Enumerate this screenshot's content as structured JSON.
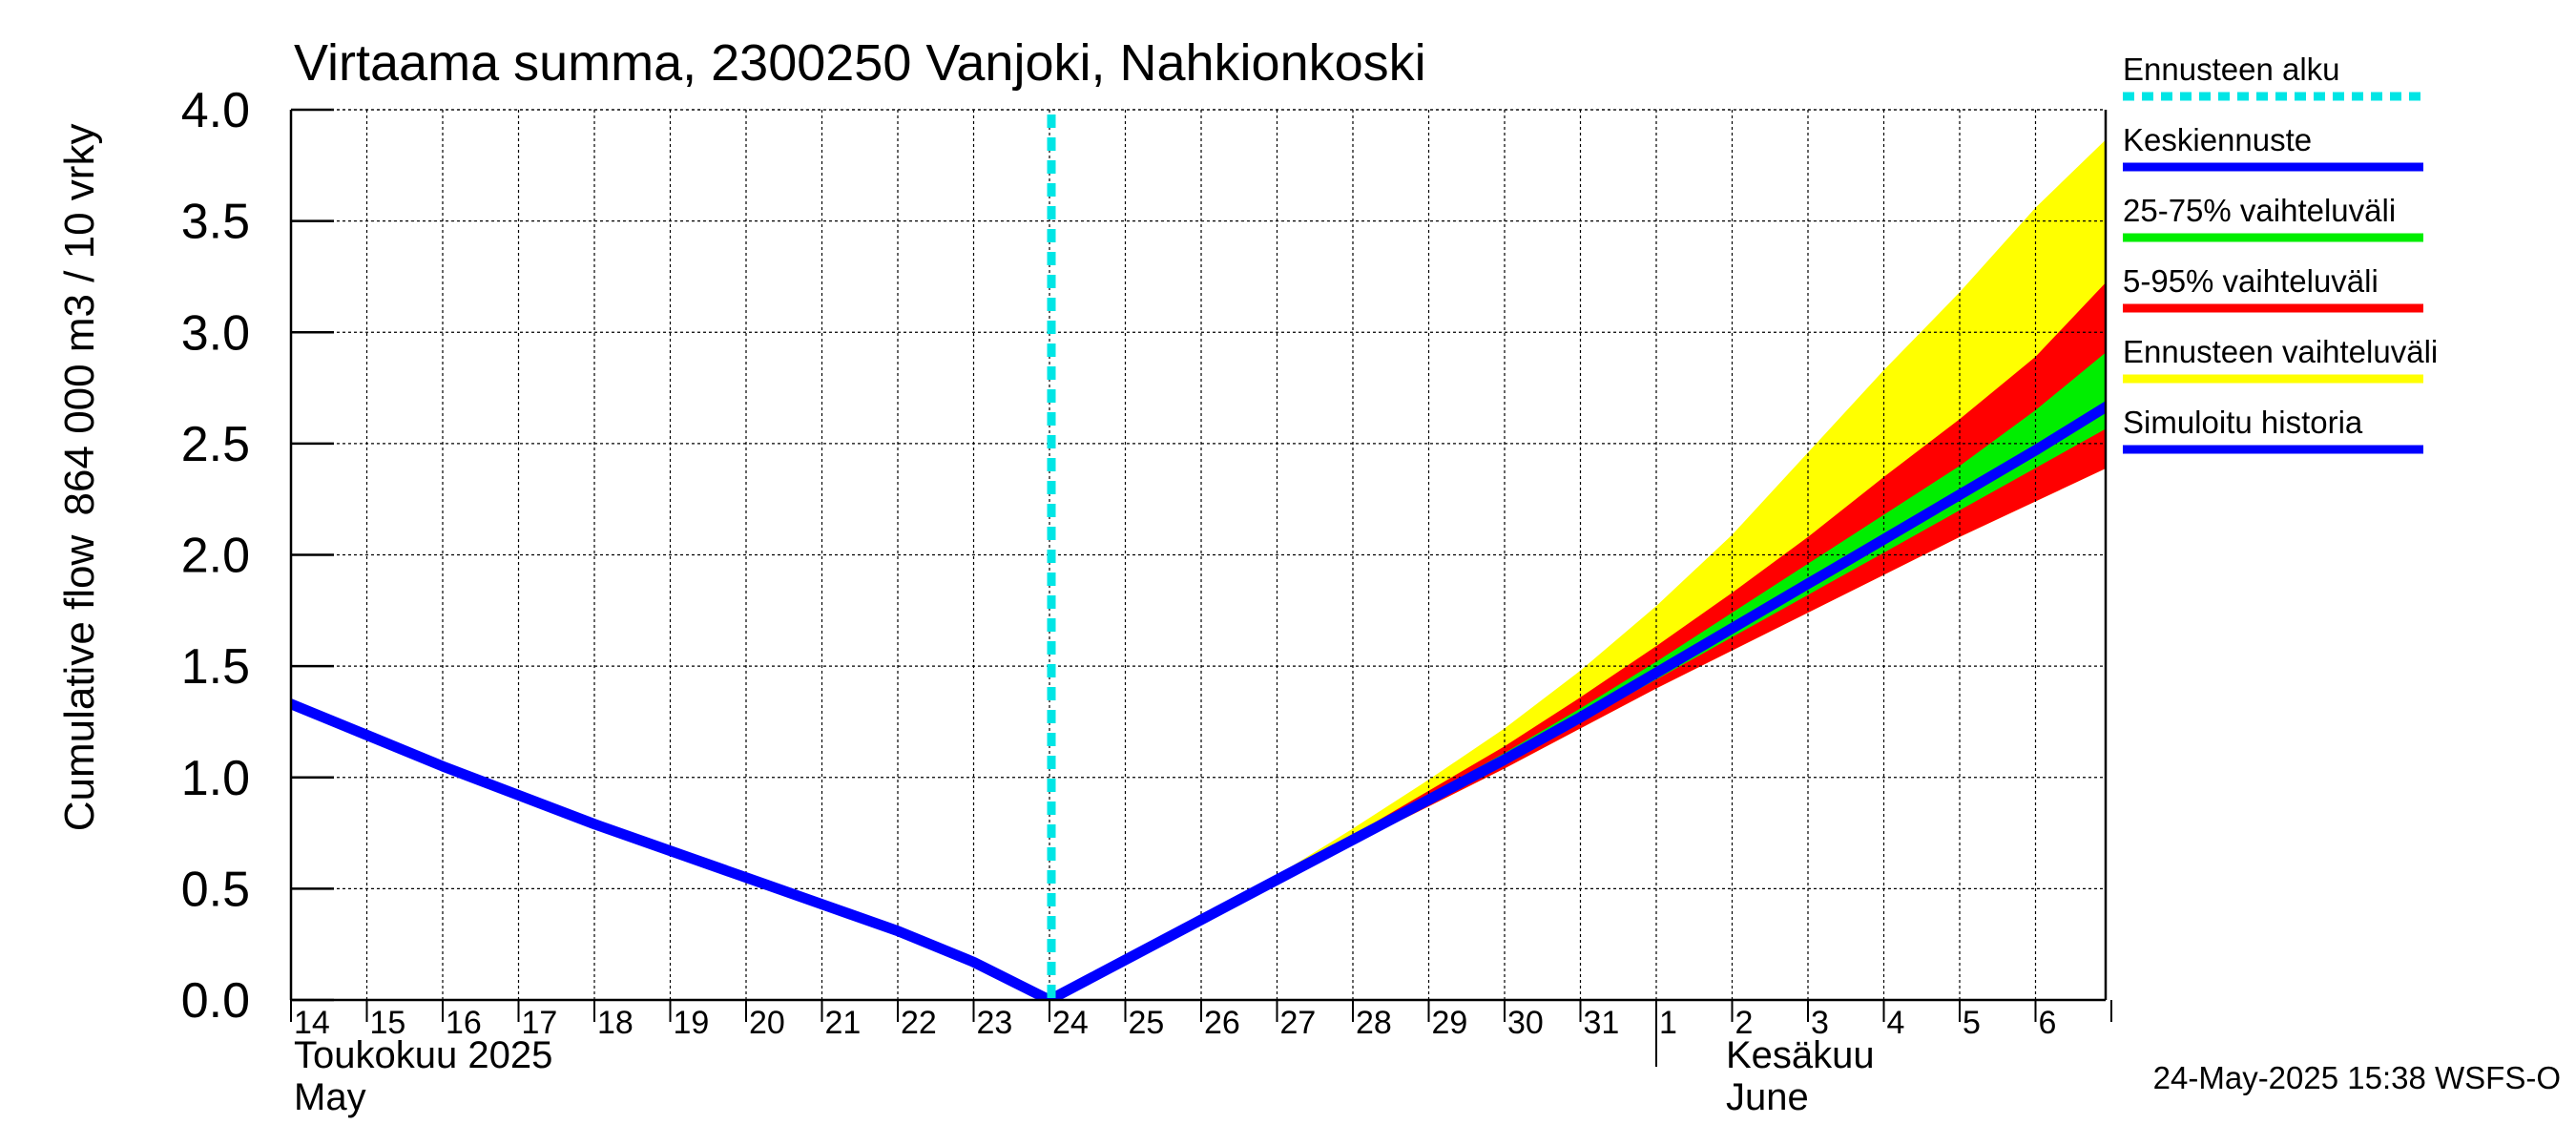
{
  "chart_data": {
    "type": "area",
    "title": "Virtaama summa, 2300250 Vanjoki, Nahkionkoski",
    "ylabel_lines": [
      "Cumulative flow",
      "864 000 m3 / 10 vrky"
    ],
    "ylim": [
      0,
      4.0
    ],
    "yticks": [
      "0.0",
      "0.5",
      "1.0",
      "1.5",
      "2.0",
      "2.5",
      "3.0",
      "3.5",
      "4.0"
    ],
    "xlim": [
      "2025-05-14",
      "2025-06-06"
    ],
    "x_day_labels": [
      "14",
      "15",
      "16",
      "17",
      "18",
      "19",
      "20",
      "21",
      "22",
      "23",
      "24",
      "25",
      "26",
      "27",
      "28",
      "29",
      "30",
      "31",
      "1",
      "2",
      "3",
      "4",
      "5",
      "6"
    ],
    "x_month_labels": [
      {
        "fi": "Toukokuu  2025",
        "en": "May"
      },
      {
        "fi": "Kesäkuu",
        "en": "June"
      }
    ],
    "grid": true,
    "legend_position": "right",
    "forecast_start": "2025-05-24",
    "legend": [
      {
        "label": "Ennusteen alku",
        "color": "#00e5e5",
        "style": "dashed"
      },
      {
        "label": "Keskiennuste",
        "color": "#0000ff",
        "style": "solid"
      },
      {
        "label": "25-75% vaihteluväli",
        "color": "#00ee00",
        "style": "solid"
      },
      {
        "label": "5-95% vaihteluväli",
        "color": "#ff0000",
        "style": "solid"
      },
      {
        "label": "Ennusteen vaihteluväli",
        "color": "#ffff00",
        "style": "solid"
      },
      {
        "label": "Simuloitu historia",
        "color": "#0000ff",
        "style": "solid"
      }
    ],
    "series": [
      {
        "name": "Simuloitu historia",
        "color": "#0000ff",
        "x": [
          "2025-05-14",
          "2025-05-15",
          "2025-05-16",
          "2025-05-17",
          "2025-05-18",
          "2025-05-19",
          "2025-05-20",
          "2025-05-21",
          "2025-05-22",
          "2025-05-23",
          "2025-05-24"
        ],
        "y": [
          1.33,
          1.19,
          1.05,
          0.92,
          0.79,
          0.67,
          0.55,
          0.43,
          0.31,
          0.17,
          0.0
        ]
      },
      {
        "name": "Keskiennuste",
        "color": "#0000ff",
        "x": [
          "2025-05-24",
          "2025-05-25",
          "2025-05-26",
          "2025-05-27",
          "2025-05-28",
          "2025-05-29",
          "2025-05-30",
          "2025-05-31",
          "2025-06-01",
          "2025-06-02",
          "2025-06-03",
          "2025-06-04",
          "2025-06-05",
          "2025-06-06",
          "2025-06-07"
        ],
        "y": [
          0.0,
          0.18,
          0.36,
          0.54,
          0.72,
          0.9,
          1.08,
          1.27,
          1.47,
          1.67,
          1.87,
          2.07,
          2.27,
          2.47,
          2.68
        ]
      },
      {
        "name": "25-75% vaihteluväli",
        "color": "#00ee00",
        "x": [
          "2025-05-27",
          "2025-05-28",
          "2025-05-29",
          "2025-05-30",
          "2025-05-31",
          "2025-06-01",
          "2025-06-02",
          "2025-06-03",
          "2025-06-04",
          "2025-06-05",
          "2025-06-06",
          "2025-06-07"
        ],
        "low": [
          0.54,
          0.71,
          0.89,
          1.06,
          1.25,
          1.44,
          1.63,
          1.82,
          2.01,
          2.2,
          2.39,
          2.58
        ],
        "high": [
          0.55,
          0.73,
          0.92,
          1.11,
          1.31,
          1.52,
          1.74,
          1.96,
          2.18,
          2.4,
          2.65,
          2.93
        ]
      },
      {
        "name": "5-95% vaihteluväli",
        "color": "#ff0000",
        "x": [
          "2025-05-27",
          "2025-05-28",
          "2025-05-29",
          "2025-05-30",
          "2025-05-31",
          "2025-06-01",
          "2025-06-02",
          "2025-06-03",
          "2025-06-04",
          "2025-06-05",
          "2025-06-06",
          "2025-06-07"
        ],
        "low": [
          0.53,
          0.7,
          0.87,
          1.04,
          1.22,
          1.4,
          1.57,
          1.74,
          1.91,
          2.08,
          2.24,
          2.4
        ],
        "high": [
          0.55,
          0.74,
          0.94,
          1.14,
          1.36,
          1.59,
          1.83,
          2.08,
          2.35,
          2.61,
          2.89,
          3.25
        ]
      },
      {
        "name": "Ennusteen vaihteluväli",
        "color": "#ffff00",
        "x": [
          "2025-05-27",
          "2025-05-28",
          "2025-05-29",
          "2025-05-30",
          "2025-05-31",
          "2025-06-01",
          "2025-06-02",
          "2025-06-03",
          "2025-06-04",
          "2025-06-05",
          "2025-06-06",
          "2025-06-07"
        ],
        "low": [
          0.53,
          0.7,
          0.87,
          1.04,
          1.22,
          1.4,
          1.57,
          1.74,
          1.91,
          2.08,
          2.24,
          2.4
        ],
        "high": [
          0.56,
          0.77,
          0.99,
          1.22,
          1.48,
          1.77,
          2.09,
          2.46,
          2.83,
          3.18,
          3.56,
          3.89
        ]
      }
    ],
    "timestamp": "24-May-2025 15:38 WSFS-O"
  }
}
